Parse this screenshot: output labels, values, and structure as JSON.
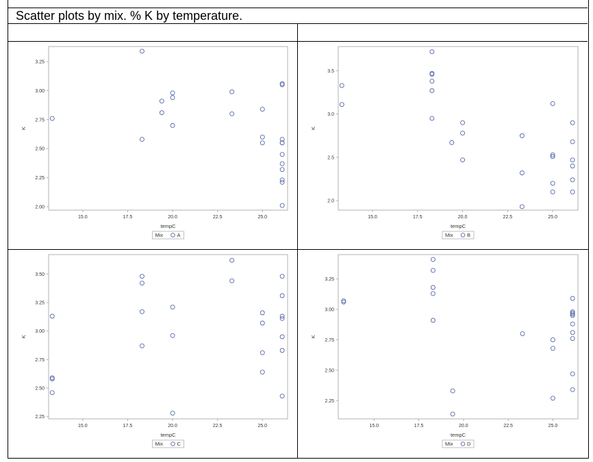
{
  "title": "Scatter plots by mix.  % K by temperature.",
  "colors": {
    "marker": "#5566aa",
    "frame": "#b0b0b0",
    "text": "#333333"
  },
  "chart_data": [
    {
      "type": "scatter",
      "xlabel": "tempC",
      "ylabel": "K",
      "legend_title": "Mix",
      "series": [
        {
          "name": "A",
          "x": [
            13.3,
            18.3,
            18.3,
            19.4,
            19.4,
            20.0,
            20.0,
            20.0,
            23.3,
            23.3,
            25.0,
            25.0,
            25.0,
            26.1,
            26.1,
            26.1,
            26.1,
            26.1,
            26.1,
            26.1,
            26.1,
            26.1,
            26.1,
            26.1
          ],
          "y": [
            2.76,
            3.34,
            2.58,
            2.91,
            2.81,
            2.98,
            2.94,
            2.7,
            2.99,
            2.8,
            2.84,
            2.6,
            2.55,
            3.06,
            3.05,
            2.58,
            2.55,
            2.45,
            2.37,
            2.32,
            2.23,
            2.21,
            2.01,
            2.55
          ]
        }
      ],
      "xticks": [
        15.0,
        17.5,
        20.0,
        22.5,
        25.0
      ],
      "xtick_labels": [
        "15.0",
        "17.5",
        "20.0",
        "22.5",
        "25.0"
      ],
      "yticks": [
        2.0,
        2.25,
        2.5,
        2.75,
        3.0,
        3.25
      ],
      "ytick_labels": [
        "2.00",
        "2.25",
        "2.50",
        "2.75",
        "3.00",
        "3.25"
      ],
      "xlim": [
        13.1,
        26.4
      ],
      "ylim": [
        1.97,
        3.38
      ],
      "legend": "bottom-center",
      "grid": false
    },
    {
      "type": "scatter",
      "xlabel": "tempC",
      "ylabel": "K",
      "legend_title": "Mix",
      "series": [
        {
          "name": "B",
          "x": [
            13.3,
            13.3,
            18.3,
            18.3,
            18.3,
            18.3,
            18.3,
            18.3,
            19.4,
            20.0,
            20.0,
            20.0,
            23.3,
            23.3,
            23.3,
            25.0,
            25.0,
            25.0,
            25.0,
            25.0,
            25.0,
            26.1,
            26.1,
            26.1,
            26.1,
            26.1,
            26.1
          ],
          "y": [
            3.33,
            3.11,
            3.72,
            3.47,
            3.46,
            3.38,
            3.27,
            2.95,
            2.67,
            2.9,
            2.78,
            2.47,
            2.75,
            2.32,
            1.93,
            3.12,
            2.53,
            2.51,
            2.2,
            2.1,
            2.51,
            2.9,
            2.68,
            2.47,
            2.4,
            2.24,
            2.1
          ]
        }
      ],
      "xticks": [
        15.0,
        17.5,
        20.0,
        22.5,
        25.0
      ],
      "xtick_labels": [
        "15.0",
        "17.5",
        "20.0",
        "22.5",
        "25.0"
      ],
      "yticks": [
        2.0,
        2.5,
        3.0,
        3.5
      ],
      "ytick_labels": [
        "2.0",
        "2.5",
        "3.0",
        "3.5"
      ],
      "xlim": [
        13.1,
        26.4
      ],
      "ylim": [
        1.89,
        3.78
      ],
      "legend": "bottom-center",
      "grid": false
    },
    {
      "type": "scatter",
      "xlabel": "tempC",
      "ylabel": "K",
      "legend_title": "Mix",
      "series": [
        {
          "name": "C",
          "x": [
            13.3,
            13.3,
            13.3,
            13.3,
            18.3,
            18.3,
            18.3,
            18.3,
            20.0,
            20.0,
            20.0,
            23.3,
            23.3,
            25.0,
            25.0,
            25.0,
            25.0,
            26.1,
            26.1,
            26.1,
            26.1,
            26.1,
            26.1,
            26.1
          ],
          "y": [
            3.13,
            2.59,
            2.58,
            2.46,
            3.48,
            3.42,
            3.17,
            2.87,
            3.21,
            2.96,
            2.28,
            3.62,
            3.44,
            3.16,
            3.07,
            2.81,
            2.64,
            3.48,
            3.31,
            3.13,
            3.11,
            2.95,
            2.83,
            2.43
          ]
        }
      ],
      "xticks": [
        15.0,
        17.5,
        20.0,
        22.5,
        25.0
      ],
      "xtick_labels": [
        "15.0",
        "17.5",
        "20.0",
        "22.5",
        "25.0"
      ],
      "yticks": [
        2.25,
        2.5,
        2.75,
        3.0,
        3.25,
        3.5
      ],
      "ytick_labels": [
        "2.25",
        "2.50",
        "2.75",
        "3.00",
        "3.25",
        "3.50"
      ],
      "xlim": [
        13.1,
        26.4
      ],
      "ylim": [
        2.23,
        3.67
      ],
      "legend": "bottom-center",
      "grid": false
    },
    {
      "type": "scatter",
      "xlabel": "tempC",
      "ylabel": "K",
      "legend_title": "Mix",
      "series": [
        {
          "name": "D",
          "x": [
            13.3,
            13.3,
            18.3,
            18.3,
            18.3,
            18.3,
            18.3,
            19.4,
            19.4,
            23.3,
            25.0,
            25.0,
            25.0,
            26.1,
            26.1,
            26.1,
            26.1,
            26.1,
            26.1,
            26.1,
            26.1,
            26.1,
            26.1
          ],
          "y": [
            3.07,
            3.06,
            3.41,
            3.32,
            3.18,
            3.13,
            2.91,
            2.33,
            2.14,
            2.8,
            2.75,
            2.68,
            2.27,
            3.09,
            2.98,
            2.97,
            2.95,
            2.88,
            2.81,
            2.76,
            2.47,
            2.34,
            2.96
          ]
        }
      ],
      "xticks": [
        15.0,
        17.5,
        20.0,
        22.5,
        25.0
      ],
      "xtick_labels": [
        "15.0",
        "17.5",
        "20.0",
        "22.5",
        "25.0"
      ],
      "yticks": [
        2.25,
        2.5,
        2.75,
        3.0,
        3.25
      ],
      "ytick_labels": [
        "2.25",
        "2.50",
        "2.75",
        "3.00",
        "3.25"
      ],
      "xlim": [
        13.0,
        26.4
      ],
      "ylim": [
        2.1,
        3.45
      ],
      "legend": "bottom-center",
      "grid": false
    }
  ]
}
